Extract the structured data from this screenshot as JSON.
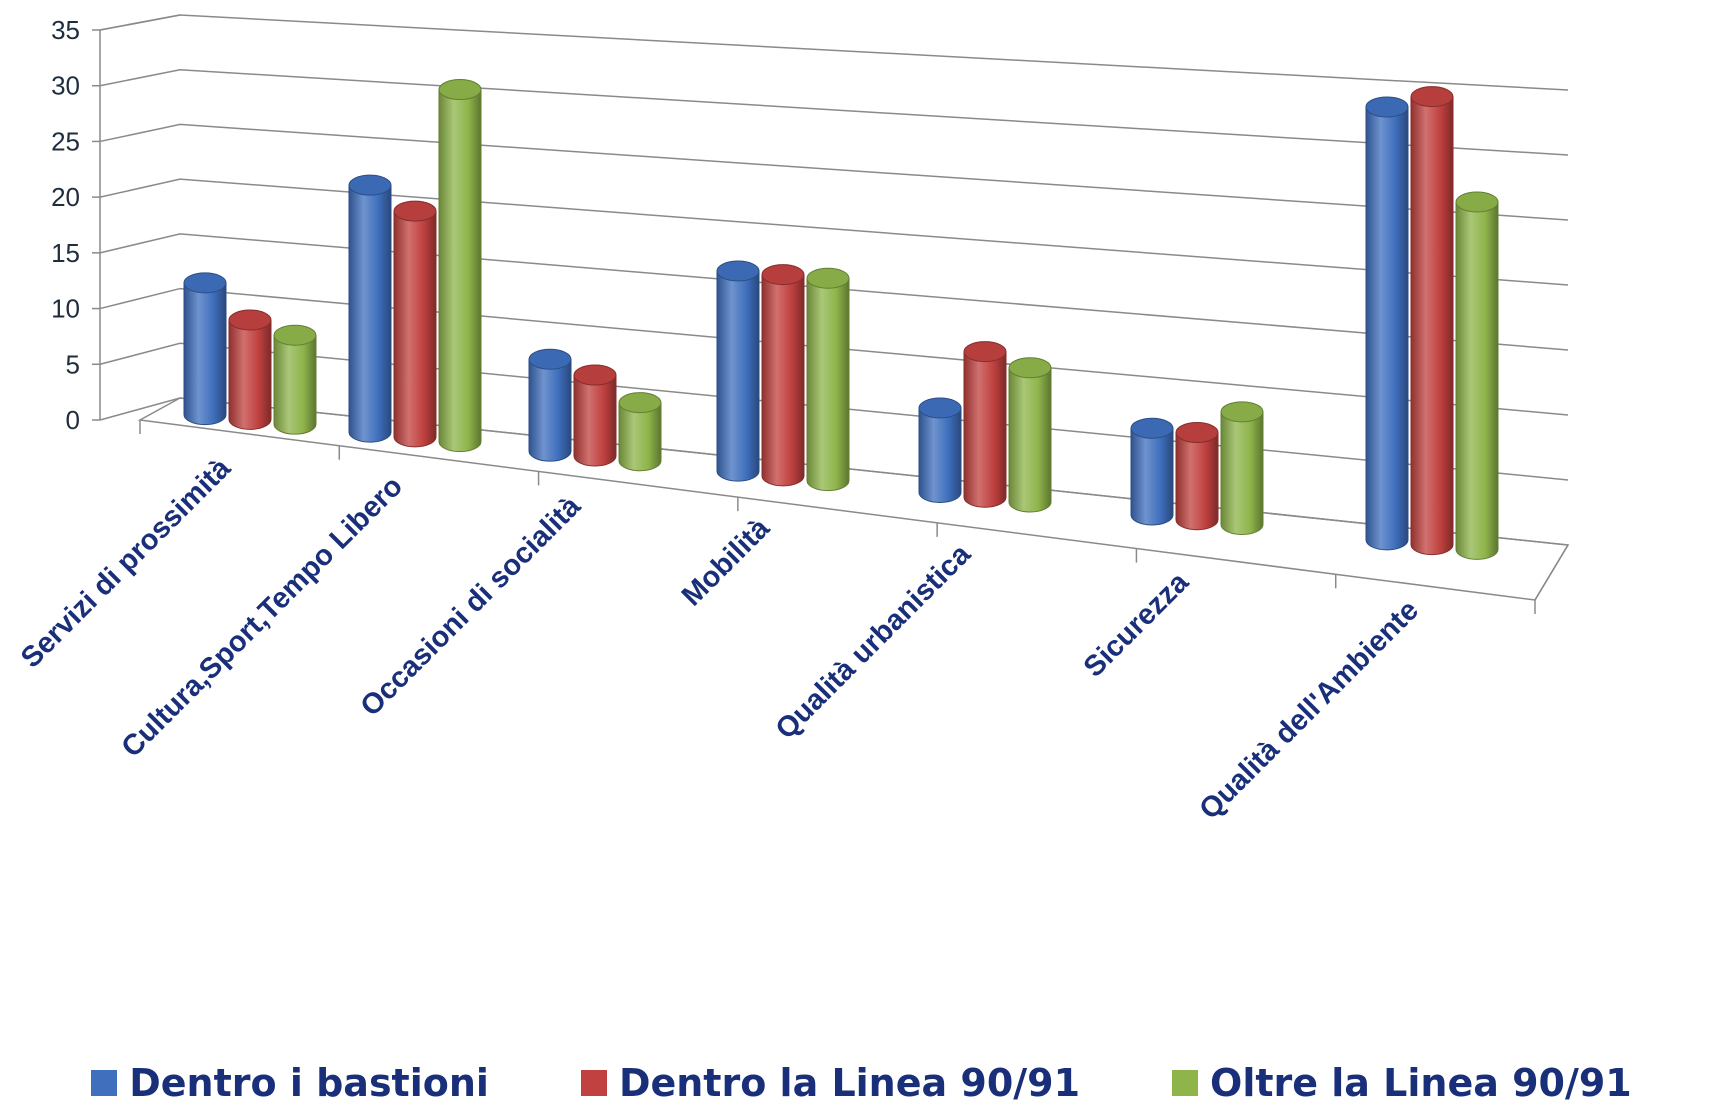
{
  "chart_data": {
    "type": "bar",
    "variant": "3d-cylinder",
    "categories": [
      "Servizi di prossimità",
      "Cultura,Sport,Tempo Libero",
      "Occasioni di socialità",
      "Mobilità",
      "Qualità urbanistica",
      "Sicurezza",
      "Qualità dell'Ambiente"
    ],
    "series": [
      {
        "name": "Dentro i bastioni",
        "color": "#3f6fbd",
        "values": [
          12,
          22,
          8,
          17,
          7,
          7,
          34
        ]
      },
      {
        "name": "Dentro la Linea 90/91",
        "color": "#c0413f",
        "values": [
          9,
          20,
          7,
          17,
          12,
          7,
          35
        ]
      },
      {
        "name": "Oltre la Linea 90/91",
        "color": "#8eb44a",
        "values": [
          8,
          31,
          5,
          17,
          11,
          9,
          27
        ]
      }
    ],
    "yticks": [
      0,
      5,
      10,
      15,
      20,
      25,
      30,
      35
    ],
    "ylim": [
      0,
      35
    ],
    "grid": true,
    "legend_position": "bottom"
  }
}
